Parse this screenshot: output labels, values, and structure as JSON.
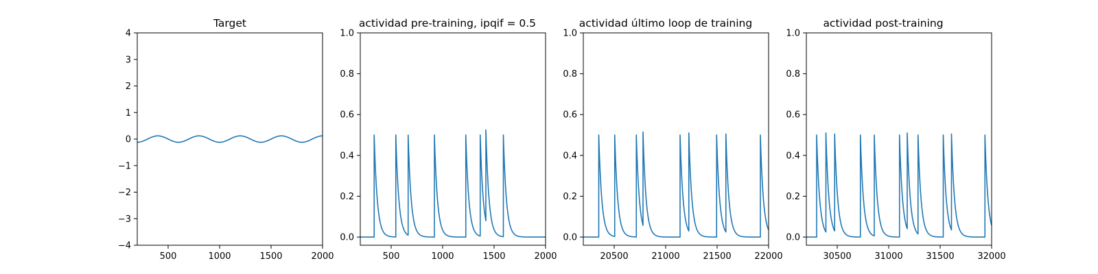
{
  "colors": {
    "series": "#1f77b4",
    "axes": "#000000",
    "background": "#ffffff"
  },
  "chart_data": [
    {
      "type": "line",
      "title": "Target",
      "xlabel": "",
      "ylabel": "",
      "xlim": [
        200,
        2000
      ],
      "ylim": [
        -4,
        4
      ],
      "xticks": [
        500,
        1000,
        1500,
        2000
      ],
      "yticks": [
        -4,
        -3,
        -2,
        -1,
        0,
        1,
        2,
        3,
        4
      ],
      "grid": false,
      "function": {
        "kind": "sine",
        "amplitude": 0.12,
        "period": 400,
        "phase_x0": 300,
        "x_start": 200,
        "x_end": 2000
      }
    },
    {
      "type": "line",
      "title": "actividad pre-training, ipqif = 0.5",
      "xlabel": "",
      "ylabel": "",
      "xlim": [
        200,
        2000
      ],
      "ylim": [
        -0.04,
        1.0
      ],
      "xticks": [
        500,
        1000,
        1500,
        2000
      ],
      "yticks": [
        0.0,
        0.2,
        0.4,
        0.6,
        0.8,
        1.0
      ],
      "grid": false,
      "spikes": {
        "times": [
          335,
          545,
          665,
          920,
          1225,
          1365,
          1420,
          1590
        ],
        "peaks": [
          0.5,
          0.5,
          0.5,
          0.5,
          0.5,
          0.5,
          0.525,
          0.5
        ],
        "decay": 30,
        "baseline": 0.0
      }
    },
    {
      "type": "line",
      "title": "actividad último loop de training",
      "xlabel": "",
      "ylabel": "",
      "xlim": [
        20200,
        22000
      ],
      "ylim": [
        -0.04,
        1.0
      ],
      "xticks": [
        20500,
        21000,
        21500,
        22000
      ],
      "yticks": [
        0.0,
        0.2,
        0.4,
        0.6,
        0.8,
        1.0
      ],
      "grid": false,
      "spikes": {
        "times": [
          20350,
          20505,
          20715,
          20780,
          21140,
          21225,
          21495,
          21585,
          21920
        ],
        "peaks": [
          0.5,
          0.5,
          0.5,
          0.515,
          0.5,
          0.51,
          0.5,
          0.505,
          0.5
        ],
        "decay": 30,
        "baseline": 0.0
      }
    },
    {
      "type": "line",
      "title": "actividad post-training",
      "xlabel": "",
      "ylabel": "",
      "xlim": [
        30200,
        32000
      ],
      "ylim": [
        -0.04,
        1.0
      ],
      "xticks": [
        30500,
        31000,
        31500,
        32000
      ],
      "yticks": [
        0.0,
        0.2,
        0.4,
        0.6,
        0.8,
        1.0
      ],
      "grid": false,
      "spikes": {
        "times": [
          30300,
          30390,
          30475,
          30725,
          30860,
          31105,
          31180,
          31285,
          31530,
          31610,
          31935
        ],
        "peaks": [
          0.5,
          0.51,
          0.505,
          0.5,
          0.5,
          0.5,
          0.51,
          0.5,
          0.5,
          0.505,
          0.5
        ],
        "decay": 30,
        "baseline": 0.0
      }
    }
  ]
}
